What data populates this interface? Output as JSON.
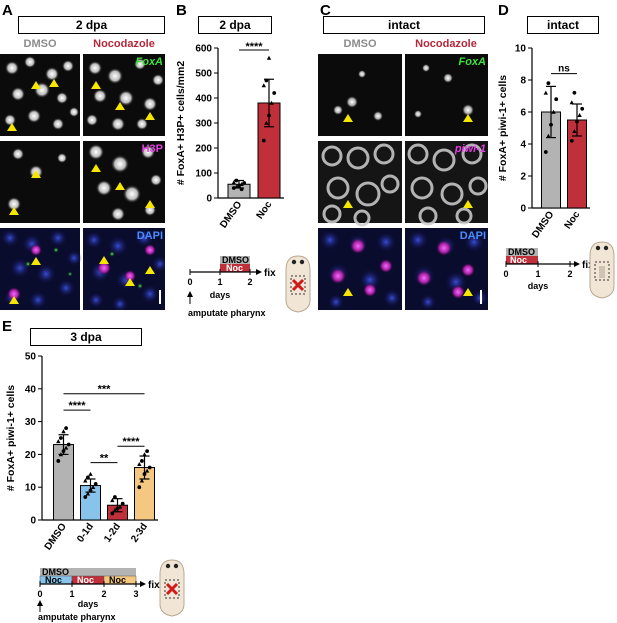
{
  "panels": {
    "A": {
      "letter": "A",
      "header": "2 dpa",
      "col_labels": [
        "DMSO",
        "Nocodazole"
      ],
      "channels": [
        "FoxA",
        "H3P",
        "DAPI"
      ]
    },
    "B": {
      "letter": "B",
      "header": "2 dpa",
      "chart_data": {
        "type": "bar",
        "categories": [
          "DMSO",
          "Noc"
        ],
        "values": [
          55,
          380
        ],
        "error": [
          15,
          95
        ],
        "points": [
          [
            40,
            45,
            50,
            55,
            60,
            62,
            70,
            48,
            35
          ],
          [
            230,
            300,
            330,
            380,
            420,
            450,
            470,
            560
          ]
        ],
        "ylabel": "# FoxA+ H3P+ cells/mm2",
        "ylim": [
          0,
          600
        ],
        "yticks": [
          "0",
          "100",
          "200",
          "300",
          "400",
          "500",
          "600"
        ],
        "significance": "****",
        "colors": [
          "#b3b3b3",
          "#c0303a"
        ]
      },
      "timeline": {
        "dmso": "DMSO",
        "noc": "Noc",
        "ticks": [
          "0",
          "1",
          "2"
        ],
        "xlabel": "days",
        "fix": "fix",
        "start": "amputate pharynx"
      }
    },
    "C": {
      "letter": "C",
      "header": "intact",
      "col_labels": [
        "DMSO",
        "Nocodazole"
      ],
      "channels": [
        "FoxA",
        "piwi-1",
        "DAPI"
      ]
    },
    "D": {
      "letter": "D",
      "header": "intact",
      "chart_data": {
        "type": "bar",
        "categories": [
          "DMSO",
          "Noc"
        ],
        "values": [
          6,
          5.5
        ],
        "error": [
          1.6,
          1.0
        ],
        "points": [
          [
            3.5,
            4.5,
            5.2,
            6.0,
            6.8,
            7.2,
            7.8
          ],
          [
            4.2,
            4.8,
            5.4,
            5.8,
            6.2,
            6.6,
            7.2
          ]
        ],
        "ylabel": "# FoxA+ piwi-1+ cells",
        "ylim": [
          0,
          10
        ],
        "yticks": [
          "0",
          "2",
          "4",
          "6",
          "8",
          "10"
        ],
        "significance": "ns",
        "colors": [
          "#b3b3b3",
          "#c0303a"
        ]
      },
      "timeline": {
        "dmso": "DMSO",
        "noc": "Noc",
        "ticks": [
          "0",
          "1",
          "2"
        ],
        "xlabel": "days",
        "fix": "fix"
      }
    },
    "E": {
      "letter": "E",
      "header": "3 dpa",
      "chart_data": {
        "type": "bar",
        "categories": [
          "DMSO",
          "0-1d",
          "1-2d",
          "2-3d"
        ],
        "values": [
          23,
          10.5,
          4.5,
          16
        ],
        "error": [
          3,
          2,
          2,
          3.5
        ],
        "points": [
          [
            18,
            20,
            21,
            22,
            23,
            24,
            25,
            27,
            28
          ],
          [
            7,
            8,
            9,
            10,
            11,
            12,
            13,
            14
          ],
          [
            2,
            3,
            3.5,
            4,
            5,
            6,
            7
          ],
          [
            10,
            12,
            14,
            15,
            16,
            17,
            18,
            20,
            21
          ]
        ],
        "ylabel": "# FoxA+ piwi-1+ cells",
        "ylim": [
          0,
          50
        ],
        "yticks": [
          "0",
          "10",
          "20",
          "30",
          "40",
          "50"
        ],
        "significance": [
          {
            "from": 0,
            "to": 1,
            "label": "****"
          },
          {
            "from": 0,
            "to": 3,
            "label": "***"
          },
          {
            "from": 1,
            "to": 2,
            "label": "**"
          },
          {
            "from": 2,
            "to": 3,
            "label": "****"
          }
        ],
        "colors": [
          "#b3b3b3",
          "#87c3ea",
          "#c0303a",
          "#f5c882"
        ]
      },
      "timeline": {
        "dmso": "DMSO",
        "noc": "Noc",
        "ticks": [
          "0",
          "1",
          "2",
          "3"
        ],
        "xlabel": "days",
        "fix": "fix",
        "start": "amputate pharynx"
      }
    }
  }
}
